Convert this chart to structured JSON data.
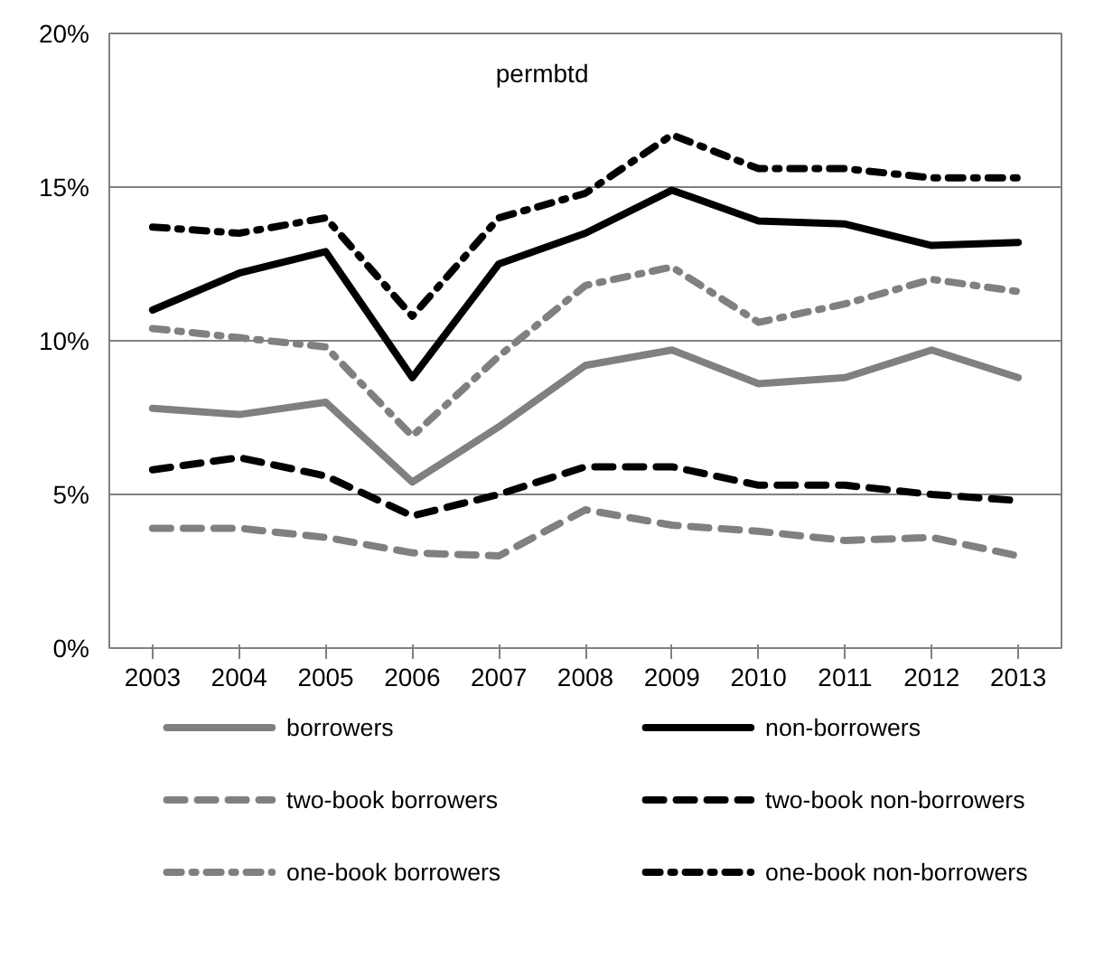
{
  "chart_data": {
    "type": "line",
    "title": "permbtd",
    "categories": [
      "2003",
      "2004",
      "2005",
      "2006",
      "2007",
      "2008",
      "2009",
      "2010",
      "2011",
      "2012",
      "2013"
    ],
    "ylim": [
      0,
      0.2
    ],
    "yticks": [
      {
        "value": 0,
        "label": "0%"
      },
      {
        "value": 0.05,
        "label": "5%"
      },
      {
        "value": 0.1,
        "label": "10%"
      },
      {
        "value": 0.15,
        "label": "15%"
      },
      {
        "value": 0.2,
        "label": "20%"
      }
    ],
    "grid": "y",
    "legend": "bottom",
    "series": [
      {
        "name": "borrowers",
        "color": "#808080",
        "line_style": "solid",
        "values": [
          0.078,
          0.076,
          0.08,
          0.054,
          0.072,
          0.092,
          0.097,
          0.086,
          0.088,
          0.097,
          0.088
        ]
      },
      {
        "name": "non-borrowers",
        "color": "#000000",
        "line_style": "solid",
        "values": [
          0.11,
          0.122,
          0.129,
          0.088,
          0.125,
          0.135,
          0.149,
          0.139,
          0.138,
          0.131,
          0.132
        ]
      },
      {
        "name": "two-book borrowers",
        "color": "#808080",
        "line_style": "dashed",
        "values": [
          0.039,
          0.039,
          0.036,
          0.031,
          0.03,
          0.045,
          0.04,
          0.038,
          0.035,
          0.036,
          0.03
        ]
      },
      {
        "name": "two-book non-borrowers",
        "color": "#000000",
        "line_style": "dashed",
        "values": [
          0.058,
          0.062,
          0.056,
          0.043,
          0.05,
          0.059,
          0.059,
          0.053,
          0.053,
          0.05,
          0.048
        ]
      },
      {
        "name": "one-book borrowers",
        "color": "#808080",
        "line_style": "dashdot",
        "values": [
          0.104,
          0.101,
          0.098,
          0.069,
          0.095,
          0.118,
          0.124,
          0.106,
          0.112,
          0.12,
          0.116
        ]
      },
      {
        "name": "one-book non-borrowers",
        "color": "#000000",
        "line_style": "dashdot",
        "values": [
          0.137,
          0.135,
          0.14,
          0.108,
          0.14,
          0.148,
          0.167,
          0.156,
          0.156,
          0.153,
          0.153
        ]
      }
    ]
  }
}
